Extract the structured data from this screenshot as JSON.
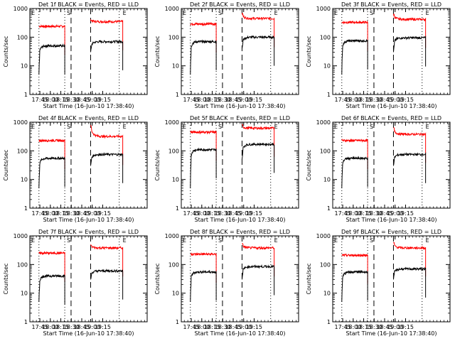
{
  "chart_data": {
    "type": "line",
    "shared": {
      "ylabel": "Counts/sec",
      "xlabel": "Start Time (16-Jun-10 17:38:40)",
      "yscale": "log",
      "ylim": [
        1,
        1000
      ],
      "yticks": [
        "1",
        "10",
        "100",
        "1000"
      ],
      "xlim_minutes": [
        -8,
        160
      ],
      "xticks": [
        "17:45",
        "18:00",
        "18:15",
        "18:30",
        "18:45",
        "19:00",
        "19:15"
      ],
      "xtick_minutes": [
        6.33,
        21.33,
        36.33,
        51.33,
        66.33,
        81.33,
        96.33
      ],
      "markers": [
        {
          "label": "E",
          "minute": -6
        },
        {
          "label": "S",
          "minute": 45
        },
        {
          "label": "E",
          "minute": 125
        }
      ],
      "dotted_lines_minutes": [
        5,
        42,
        120
      ],
      "dashed_lines_minutes": [
        51,
        79
      ],
      "series_colors": {
        "events": "#000000",
        "lld": "#ff0000"
      }
    },
    "panels": [
      {
        "title": "Det 1f BLACK = Events, RED = LLD",
        "segments": [
          {
            "x": [
              5,
              42
            ],
            "events": 50,
            "lld": 240,
            "events_start": 5,
            "lld_start": 240
          },
          {
            "x": [
              79,
              125
            ],
            "events": 70,
            "lld": 350,
            "events_start": 30,
            "lld_start": 420
          }
        ]
      },
      {
        "title": "Det 2f BLACK = Events, RED = LLD",
        "segments": [
          {
            "x": [
              5,
              42
            ],
            "events": 70,
            "lld": 290,
            "events_start": 5,
            "lld_start": 290
          },
          {
            "x": [
              79,
              125
            ],
            "events": 100,
            "lld": 450,
            "events_start": 40,
            "lld_start": 700
          }
        ]
      },
      {
        "title": "Det 3f BLACK = Events, RED = LLD",
        "segments": [
          {
            "x": [
              5,
              42
            ],
            "events": 75,
            "lld": 330,
            "events_start": 5,
            "lld_start": 330
          },
          {
            "x": [
              79,
              125
            ],
            "events": 95,
            "lld": 420,
            "events_start": 30,
            "lld_start": 650
          }
        ]
      },
      {
        "title": "Det 4f BLACK = Events, RED = LLD",
        "segments": [
          {
            "x": [
              5,
              42
            ],
            "events": 55,
            "lld": 230,
            "events_start": 5,
            "lld_start": 230
          },
          {
            "x": [
              79,
              125
            ],
            "events": 75,
            "lld": 320,
            "events_start": 30,
            "lld_start": 800
          }
        ]
      },
      {
        "title": "Det 5f BLACK = Events, RED = LLD",
        "segments": [
          {
            "x": [
              5,
              42
            ],
            "events": 110,
            "lld": 450,
            "events_start": 5,
            "lld_start": 450
          },
          {
            "x": [
              79,
              125
            ],
            "events": 170,
            "lld": 620,
            "events_start": 50,
            "lld_start": 800
          }
        ]
      },
      {
        "title": "Det 6f BLACK = Events, RED = LLD",
        "segments": [
          {
            "x": [
              5,
              42
            ],
            "events": 55,
            "lld": 230,
            "events_start": 5,
            "lld_start": 230
          },
          {
            "x": [
              79,
              125
            ],
            "events": 75,
            "lld": 380,
            "events_start": 30,
            "lld_start": 650
          }
        ]
      },
      {
        "title": "Det 7f BLACK = Events, RED = LLD",
        "segments": [
          {
            "x": [
              5,
              42
            ],
            "events": 40,
            "lld": 250,
            "events_start": 5,
            "lld_start": 250
          },
          {
            "x": [
              79,
              125
            ],
            "events": 60,
            "lld": 380,
            "events_start": 30,
            "lld_start": 500
          }
        ]
      },
      {
        "title": "Det 8f BLACK = Events, RED = LLD",
        "segments": [
          {
            "x": [
              5,
              42
            ],
            "events": 55,
            "lld": 230,
            "events_start": 5,
            "lld_start": 230
          },
          {
            "x": [
              79,
              125
            ],
            "events": 85,
            "lld": 380,
            "events_start": 30,
            "lld_start": 550
          }
        ]
      },
      {
        "title": "Det 9f BLACK = Events, RED = LLD",
        "segments": [
          {
            "x": [
              5,
              42
            ],
            "events": 55,
            "lld": 210,
            "events_start": 5,
            "lld_start": 210
          },
          {
            "x": [
              79,
              125
            ],
            "events": 70,
            "lld": 380,
            "events_start": 30,
            "lld_start": 600
          }
        ]
      }
    ]
  }
}
